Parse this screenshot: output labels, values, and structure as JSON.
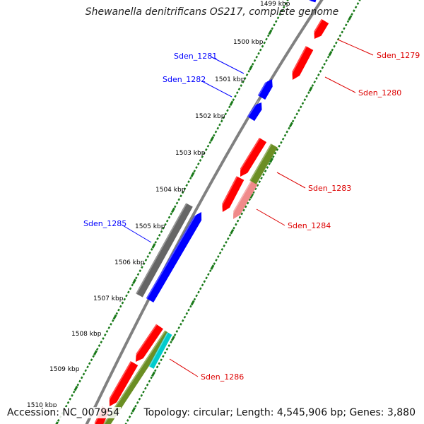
{
  "title": "Shewanella denitrificans OS217, complete genome",
  "footer": {
    "accession": "Accession: NC_007954",
    "summary": "Topology: circular; Length: 4,545,906 bp; Genes: 3,880"
  },
  "colors": {
    "forward": "#0000ff",
    "reverse": "#ff0000",
    "reverse_light": "#f08a8a",
    "olive": "#6b8e23",
    "cyan": "#00cccc",
    "gray": "#666666",
    "tick": "#1a7a1a",
    "backbone": "#808080",
    "label_forward": "#0000ff",
    "label_reverse": "#dd0000"
  },
  "ticks": [
    {
      "label": "1499 kbp"
    },
    {
      "label": "1500 kbp"
    },
    {
      "label": "1501 kbp"
    },
    {
      "label": "1502 kbp"
    },
    {
      "label": "1503 kbp"
    },
    {
      "label": "1504 kbp"
    },
    {
      "label": "1505 kbp"
    },
    {
      "label": "1506 kbp"
    },
    {
      "label": "1507 kbp"
    },
    {
      "label": "1508 kbp"
    },
    {
      "label": "1509 kbp"
    },
    {
      "label": "1510 kbp"
    }
  ],
  "gene_labels": [
    {
      "name": "Sden_1279",
      "strand": "reverse"
    },
    {
      "name": "Sden_1280",
      "strand": "reverse"
    },
    {
      "name": "Sden_1281",
      "strand": "forward"
    },
    {
      "name": "Sden_1282",
      "strand": "forward"
    },
    {
      "name": "Sden_1283",
      "strand": "reverse"
    },
    {
      "name": "Sden_1284",
      "strand": "reverse"
    },
    {
      "name": "Sden_1285",
      "strand": "forward"
    },
    {
      "name": "Sden_1286",
      "strand": "reverse"
    }
  ]
}
